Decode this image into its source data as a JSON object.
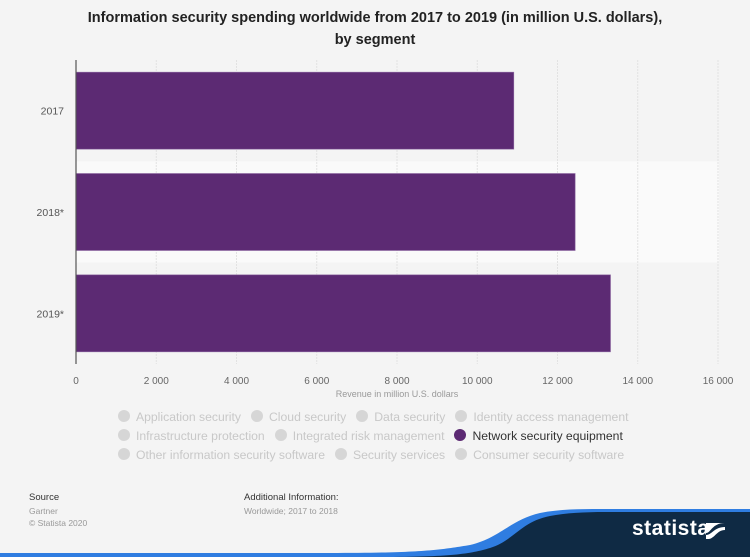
{
  "chart_data": {
    "type": "bar",
    "orientation": "horizontal",
    "title": "Information security spending worldwide from 2017 to 2019 (in million U.S. dollars),",
    "subtitle": "by segment",
    "categories": [
      "2017",
      "2018*",
      "2019*"
    ],
    "series": [
      {
        "name": "Network security equipment",
        "values": [
          10911,
          12440,
          13321
        ]
      }
    ],
    "xlabel": "Revenue in million U.S. dollars",
    "ylabel": "",
    "xlim": [
      0,
      16000
    ],
    "xticks": [
      0,
      2000,
      4000,
      6000,
      8000,
      10000,
      12000,
      14000,
      16000
    ],
    "xtick_labels": [
      "0",
      "2 000",
      "4 000",
      "6 000",
      "8 000",
      "10 000",
      "12 000",
      "14 000",
      "16 000"
    ],
    "grid": true,
    "legend_position": "bottom",
    "bar_color": "#5c2a73"
  },
  "legend": {
    "rows": [
      [
        {
          "label": "Application security",
          "active": false
        },
        {
          "label": "Cloud security",
          "active": false
        },
        {
          "label": "Data security",
          "active": false
        },
        {
          "label": "Identity access management",
          "active": false
        }
      ],
      [
        {
          "label": "Infrastructure protection",
          "active": false
        },
        {
          "label": "Integrated risk management",
          "active": false
        },
        {
          "label": "Network security equipment",
          "active": true
        }
      ],
      [
        {
          "label": "Other information security software",
          "active": false
        },
        {
          "label": "Security services",
          "active": false
        },
        {
          "label": "Consumer security software",
          "active": false
        }
      ]
    ]
  },
  "footer": {
    "source_label": "Source",
    "source_value": "Gartner",
    "copyright": "© Statista 2020",
    "additional_label": "Additional Information:",
    "additional_value": "Worldwide; 2017 to 2018",
    "logo_text": "statista"
  },
  "colors": {
    "accent": "#5c2a73",
    "footer_dark": "#0f2a44",
    "footer_blue": "#2f7de1"
  }
}
